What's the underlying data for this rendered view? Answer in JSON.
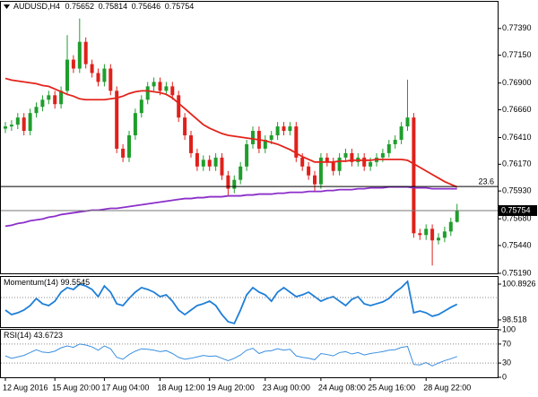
{
  "chart_data": [
    {
      "type": "candlestick",
      "symbol": "AUDUSD,H4",
      "categories": [
        "12 Aug 2016",
        null,
        null,
        null,
        null,
        null,
        null,
        null,
        "15 Aug 20:00",
        null,
        null,
        null,
        null,
        null,
        null,
        null,
        "17 Aug 04:00",
        null,
        null,
        null,
        null,
        null,
        null,
        null,
        null,
        "18 Aug 12:00",
        null,
        null,
        null,
        null,
        null,
        null,
        null,
        "19 Aug 20:00",
        null,
        null,
        null,
        null,
        null,
        null,
        null,
        null,
        "23 Aug 00:00",
        null,
        null,
        null,
        null,
        null,
        null,
        null,
        null,
        "24 Aug 08:00",
        null,
        null,
        null,
        null,
        null,
        null,
        null,
        "25 Aug 16:00",
        null,
        null,
        null,
        null,
        null,
        null,
        null,
        null,
        "28 Aug 22:00",
        null,
        null,
        null,
        null,
        null
      ],
      "open": [
        0.7649,
        0.7651,
        0.76526,
        0.7659,
        0.7647,
        0.7663,
        0.76686,
        0.7675,
        0.7679,
        0.7671,
        0.7683,
        0.7711,
        0.7703,
        0.7727,
        0.7707,
        0.7699,
        0.7691,
        0.7703,
        0.7683,
        0.7631,
        0.7623,
        0.7643,
        0.7663,
        0.7675,
        0.7687,
        0.7691,
        0.7683,
        0.7687,
        0.7679,
        0.7659,
        0.7643,
        0.7627,
        0.7615,
        0.7621,
        0.7615,
        0.7623,
        0.7607,
        0.7595,
        0.7603,
        0.7615,
        0.7635,
        0.7647,
        0.7631,
        0.7639,
        0.7643,
        0.7651,
        0.7647,
        0.7651,
        0.7623,
        0.7615,
        0.7607,
        0.7599,
        0.7623,
        0.7619,
        0.7611,
        0.7623,
        0.7627,
        0.7619,
        0.7623,
        0.7615,
        0.7619,
        0.7623,
        0.7627,
        0.7635,
        0.7639,
        0.7651,
        0.7659,
        0.7555,
        0.75534,
        0.7559,
        0.75486,
        0.7551,
        0.75566,
        0.75652
      ],
      "high": [
        0.7655,
        0.76566,
        0.7663,
        0.7663,
        0.7667,
        0.76726,
        0.7679,
        0.7683,
        0.7683,
        0.7687,
        0.7733,
        0.7715,
        0.7748,
        0.7731,
        0.7711,
        0.7703,
        0.7707,
        0.7707,
        0.7687,
        0.7635,
        0.7647,
        0.7667,
        0.7679,
        0.7691,
        0.7695,
        0.7695,
        0.7691,
        0.7691,
        0.7683,
        0.7663,
        0.7647,
        0.7631,
        0.7625,
        0.7625,
        0.7627,
        0.7627,
        0.7611,
        0.7607,
        0.7619,
        0.7639,
        0.7651,
        0.7651,
        0.7643,
        0.7647,
        0.7655,
        0.7655,
        0.7655,
        0.7655,
        0.7627,
        0.7619,
        0.7611,
        0.7627,
        0.7627,
        0.7623,
        0.7627,
        0.7631,
        0.7631,
        0.7627,
        0.7627,
        0.7623,
        0.7627,
        0.7631,
        0.7639,
        0.7643,
        0.7655,
        0.7693,
        0.7663,
        0.7559,
        0.7563,
        0.7563,
        0.7555,
        0.7561,
        0.7569,
        0.75814
      ],
      "low": [
        0.7645,
        0.7647,
        0.76486,
        0.7643,
        0.7643,
        0.7659,
        0.76646,
        0.7671,
        0.7667,
        0.7667,
        0.7679,
        0.7699,
        0.7699,
        0.7703,
        0.7695,
        0.7687,
        0.7687,
        0.7679,
        0.7627,
        0.7619,
        0.7619,
        0.7639,
        0.7659,
        0.7671,
        0.7683,
        0.7679,
        0.7679,
        0.7675,
        0.7655,
        0.7639,
        0.7623,
        0.7611,
        0.7611,
        0.7611,
        0.7611,
        0.7603,
        0.7589,
        0.7591,
        0.7599,
        0.7611,
        0.7631,
        0.7627,
        0.7627,
        0.7635,
        0.7639,
        0.7643,
        0.7643,
        0.7619,
        0.7611,
        0.7603,
        0.7593,
        0.7595,
        0.7615,
        0.7607,
        0.7607,
        0.7619,
        0.7615,
        0.7615,
        0.7611,
        0.7611,
        0.7615,
        0.7619,
        0.7623,
        0.7631,
        0.7635,
        0.7647,
        0.7551,
        0.7549,
        0.7549,
        0.7526,
        0.7545,
        0.7547,
        0.75526,
        0.75646
      ],
      "close": [
        0.7651,
        0.76526,
        0.7659,
        0.7647,
        0.7663,
        0.76686,
        0.7675,
        0.7679,
        0.7671,
        0.7683,
        0.7711,
        0.7703,
        0.7727,
        0.7707,
        0.7699,
        0.7691,
        0.7703,
        0.7683,
        0.7631,
        0.7623,
        0.7643,
        0.7663,
        0.7675,
        0.7687,
        0.7691,
        0.7683,
        0.7687,
        0.7679,
        0.7659,
        0.7643,
        0.7627,
        0.7615,
        0.7621,
        0.7615,
        0.7623,
        0.7607,
        0.7595,
        0.7603,
        0.7615,
        0.7635,
        0.7647,
        0.7631,
        0.7639,
        0.7643,
        0.7651,
        0.7647,
        0.7651,
        0.7623,
        0.7615,
        0.7607,
        0.7599,
        0.7623,
        0.7619,
        0.7611,
        0.7623,
        0.7627,
        0.7619,
        0.7623,
        0.7615,
        0.7619,
        0.7623,
        0.7627,
        0.7635,
        0.7639,
        0.7651,
        0.7659,
        0.7555,
        0.75534,
        0.7559,
        0.75486,
        0.7551,
        0.75566,
        0.75652,
        0.75754
      ],
      "up_color": "#1f9e2c",
      "down_color": "#e0201b",
      "lines": [
        {
          "color": "#e3231b",
          "values": [
            0.76942,
            0.76926,
            0.76918,
            0.7691,
            0.76902,
            0.76894,
            0.76878,
            0.7687,
            0.76846,
            0.76822,
            0.76798,
            0.76782,
            0.76758,
            0.7675,
            0.7675,
            0.7675,
            0.7675,
            0.76758,
            0.76766,
            0.76782,
            0.76806,
            0.76822,
            0.7683,
            0.7683,
            0.76822,
            0.76814,
            0.76798,
            0.76766,
            0.76718,
            0.7667,
            0.76622,
            0.76574,
            0.76526,
            0.76494,
            0.7647,
            0.76446,
            0.7643,
            0.76422,
            0.76414,
            0.76406,
            0.76398,
            0.7639,
            0.76382,
            0.76366,
            0.7635,
            0.76326,
            0.76302,
            0.7627,
            0.76238,
            0.76214,
            0.7619,
            0.7619,
            0.7619,
            0.7619,
            0.76198,
            0.76198,
            0.76206,
            0.76206,
            0.76206,
            0.76206,
            0.76214,
            0.76214,
            0.76214,
            0.76214,
            0.76214,
            0.76206,
            0.76174,
            0.76142,
            0.7611,
            0.76078,
            0.76046,
            0.76014,
            0.7599,
            0.75966
          ]
        },
        {
          "color": "#8b2fc9",
          "values": [
            0.75614,
            0.75622,
            0.75638,
            0.75646,
            0.75662,
            0.7567,
            0.75678,
            0.75694,
            0.75702,
            0.75718,
            0.75726,
            0.75734,
            0.75742,
            0.7575,
            0.75758,
            0.75758,
            0.75766,
            0.75774,
            0.75774,
            0.75782,
            0.7579,
            0.75798,
            0.75806,
            0.75814,
            0.75822,
            0.7583,
            0.75838,
            0.75846,
            0.75854,
            0.75862,
            0.75862,
            0.7587,
            0.7587,
            0.75878,
            0.75878,
            0.75878,
            0.75886,
            0.75886,
            0.75886,
            0.75894,
            0.75894,
            0.75902,
            0.75902,
            0.75902,
            0.7591,
            0.7591,
            0.75918,
            0.75918,
            0.75918,
            0.75926,
            0.75926,
            0.75926,
            0.75934,
            0.75934,
            0.75942,
            0.75942,
            0.75942,
            0.7595,
            0.7595,
            0.75958,
            0.75958,
            0.75958,
            0.75966,
            0.75966,
            0.75966,
            0.75966,
            0.75958,
            0.75958,
            0.75958,
            0.7595,
            0.7595,
            0.7595,
            0.7595,
            0.7595
          ]
        }
      ],
      "levels": [
        {
          "value": 0.7597,
          "label": "23.6",
          "color": "#000000"
        }
      ],
      "ylim": [
        0.7519,
        0.7763
      ],
      "yticks": [
        {
          "value": 0.7739,
          "label": "0.77390"
        },
        {
          "value": 0.7715,
          "label": "0.77150"
        },
        {
          "value": 0.769,
          "label": "0.76900"
        },
        {
          "value": 0.7666,
          "label": "0.76660"
        },
        {
          "value": 0.7641,
          "label": "0.76410"
        },
        {
          "value": 0.7617,
          "label": "0.76170"
        },
        {
          "value": 0.7593,
          "label": "0.75930"
        },
        {
          "value": 0.7568,
          "label": "0.75680"
        },
        {
          "value": 0.7544,
          "label": "0.75440"
        },
        {
          "value": 0.7519,
          "label": "0.75190"
        }
      ]
    },
    {
      "type": "line",
      "title": "Momentum(14)",
      "color": "#1e7fd8",
      "values": [
        99.17,
        98.87,
        98.99,
        99.17,
        99.47,
        99.94,
        99.59,
        99.47,
        99.76,
        100.36,
        100.66,
        100.54,
        100.89,
        100.77,
        100.54,
        100.06,
        100.77,
        100.36,
        99.59,
        99.47,
        99.94,
        100.36,
        100.66,
        100.54,
        100.36,
        100.06,
        100.18,
        99.76,
        99.17,
        98.87,
        99.17,
        99.47,
        99.59,
        99.76,
        99.47,
        98.87,
        98.4,
        98.28,
        99.17,
        100.18,
        100.66,
        100.36,
        100.18,
        99.76,
        100.36,
        100.66,
        100.36,
        100.06,
        100.18,
        100.36,
        100.06,
        99.76,
        99.94,
        100.06,
        99.76,
        99.47,
        99.88,
        100.06,
        99.59,
        99.47,
        99.59,
        99.71,
        99.94,
        100.36,
        100.66,
        101.07,
        98.99,
        99.11,
        98.99,
        98.76,
        98.87,
        99.11,
        99.35,
        99.5545
      ],
      "ylim": [
        98.04,
        101.37
      ],
      "yticks": [
        100.8926,
        98.518
      ],
      "levels": [
        100
      ]
    },
    {
      "type": "line",
      "title": "RSI(14)",
      "color": "#3a8fe0",
      "values": [
        45,
        40,
        43,
        46,
        52,
        58,
        53,
        52,
        55,
        62,
        66,
        63,
        70,
        68,
        64,
        57,
        66,
        60,
        42,
        38,
        48,
        55,
        60,
        59,
        57,
        54,
        56,
        50,
        42,
        38,
        40,
        43,
        46,
        44,
        45,
        40,
        35,
        40,
        47,
        57,
        61,
        50,
        55,
        56,
        60,
        57,
        59,
        45,
        42,
        40,
        37,
        50,
        48,
        45,
        52,
        54,
        49,
        52,
        47,
        50,
        52,
        54,
        57,
        58,
        63,
        65,
        27,
        26,
        31,
        24,
        30,
        35,
        39,
        43.6723
      ],
      "ylim": [
        0,
        100
      ],
      "yticks": [
        100,
        70,
        30,
        0
      ],
      "levels": [
        70,
        30
      ]
    }
  ]
}
